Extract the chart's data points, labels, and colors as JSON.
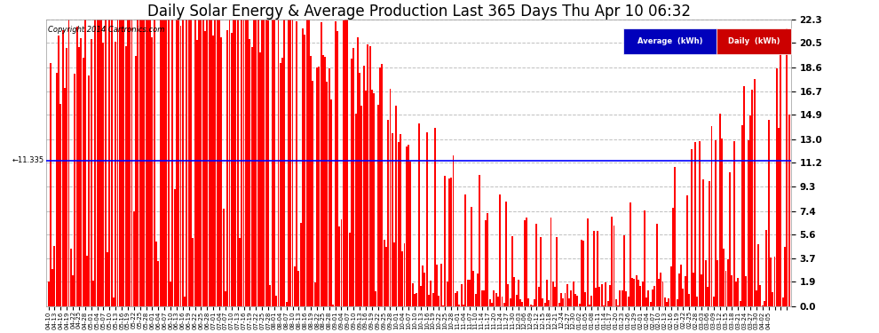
{
  "title": "Daily Solar Energy & Average Production Last 365 Days Thu Apr 10 06:32",
  "copyright": "Copyright 2014 Cartronics.com",
  "average_value": 11.335,
  "y_ticks": [
    0.0,
    1.9,
    3.7,
    5.6,
    7.4,
    9.3,
    11.2,
    13.0,
    14.9,
    16.7,
    18.6,
    20.5,
    22.3
  ],
  "y_max": 22.3,
  "y_min": 0.0,
  "bar_color": "#ff0000",
  "avg_line_color": "#0000ff",
  "background_color": "#ffffff",
  "grid_color": "#c0c0c0",
  "title_fontsize": 12,
  "legend_avg_bg": "#0000cc",
  "legend_daily_bg": "#cc0000",
  "n_days": 365,
  "x_tick_every": 3,
  "x_tick_labels": [
    "04-10",
    "04-13",
    "04-16",
    "04-19",
    "04-22",
    "04-25",
    "04-28",
    "05-01",
    "05-04",
    "05-07",
    "05-10",
    "05-13",
    "05-16",
    "05-19",
    "05-22",
    "05-25",
    "05-28",
    "06-01",
    "06-04",
    "06-07",
    "06-10",
    "06-13",
    "06-16",
    "06-19",
    "06-22",
    "06-25",
    "06-28",
    "07-01",
    "07-04",
    "07-07",
    "07-10",
    "07-13",
    "07-16",
    "07-19",
    "07-22",
    "07-25",
    "07-28",
    "08-01",
    "08-04",
    "08-07",
    "08-10",
    "08-13",
    "08-16",
    "08-19",
    "08-22",
    "08-25",
    "08-28",
    "09-01",
    "09-04",
    "09-07",
    "09-10",
    "09-13",
    "09-16",
    "09-19",
    "09-22",
    "09-25",
    "09-28",
    "10-01",
    "10-04",
    "10-07",
    "10-10",
    "10-13",
    "10-16",
    "10-19",
    "10-22",
    "10-25",
    "10-28",
    "11-01",
    "11-04",
    "11-07",
    "11-10",
    "11-14",
    "11-17",
    "11-20",
    "11-24",
    "11-27",
    "11-30",
    "12-03",
    "12-06",
    "12-09",
    "12-12",
    "12-15",
    "12-18",
    "12-21",
    "12-24",
    "12-27",
    "12-30",
    "01-02",
    "01-05",
    "01-08",
    "01-11",
    "01-14",
    "01-17",
    "01-20",
    "01-23",
    "01-26",
    "01-29",
    "02-01",
    "02-04",
    "02-07",
    "02-10",
    "02-13",
    "02-16",
    "02-19",
    "02-22",
    "02-25",
    "02-28",
    "03-03",
    "03-06",
    "03-09",
    "03-12",
    "03-15",
    "03-18",
    "03-21",
    "03-24",
    "03-27",
    "03-30",
    "04-02",
    "04-05"
  ]
}
